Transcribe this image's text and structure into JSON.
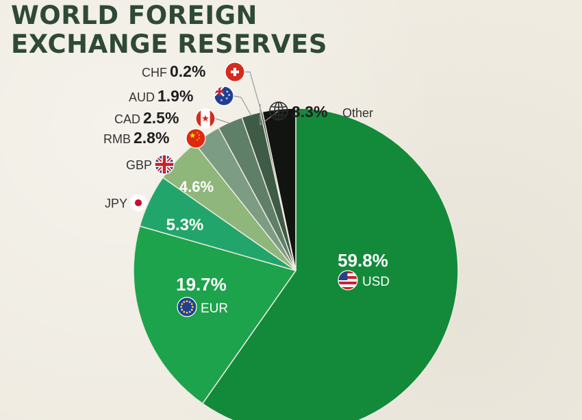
{
  "title_lines": [
    "WORLD FOREIGN",
    "EXCHANGE RESERVES"
  ],
  "chart_data": {
    "type": "pie",
    "title": "WORLD FOREIGN EXCHANGE RESERVES",
    "unit": "%",
    "slices": [
      {
        "code": "USD",
        "value": 59.8,
        "label": "59.8%",
        "color": "#138a3a",
        "icon": "usa-flag-icon"
      },
      {
        "code": "EUR",
        "value": 19.7,
        "label": "19.7%",
        "color": "#1da34b",
        "icon": "eu-flag-icon"
      },
      {
        "code": "JPY",
        "value": 5.3,
        "label": "5.3%",
        "color": "#22a56a",
        "icon": "japan-flag-icon"
      },
      {
        "code": "GBP",
        "value": 4.6,
        "label": "4.6%",
        "color": "#8fb77c",
        "icon": "uk-flag-icon"
      },
      {
        "code": "RMB",
        "value": 2.8,
        "label": "2.8%",
        "color": "#7d9c84",
        "icon": "china-flag-icon"
      },
      {
        "code": "CAD",
        "value": 2.5,
        "label": "2.5%",
        "color": "#5f7f68",
        "icon": "canada-flag-icon"
      },
      {
        "code": "AUD",
        "value": 1.9,
        "label": "1.9%",
        "color": "#3e5b47",
        "icon": "australia-flag-icon"
      },
      {
        "code": "CHF",
        "value": 0.2,
        "label": "0.2%",
        "color": "#243a2c",
        "icon": "switzerland-flag-icon"
      },
      {
        "code": "Other",
        "value": 3.3,
        "label": "3.3%",
        "color": "#111411",
        "icon": "globe-icon"
      }
    ]
  }
}
